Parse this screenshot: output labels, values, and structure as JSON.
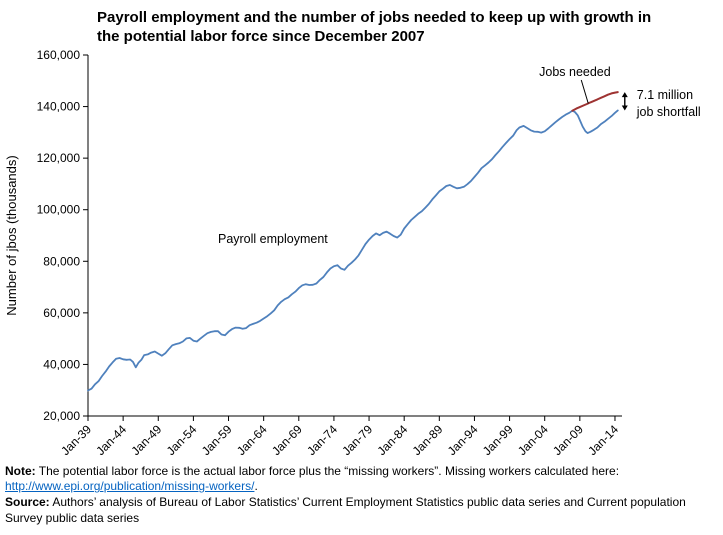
{
  "title": "Payroll employment and the number of jobs needed to keep up with growth in the potential labor force since December 2007",
  "colors": {
    "payroll_line": "#4F81BD",
    "jobs_needed_line": "#9E3332",
    "axis": "#000000",
    "link": "#0563C1"
  },
  "chart_data": {
    "type": "line",
    "title": "Payroll employment and the number of jobs needed to keep up with growth in the potential labor force since December 2007",
    "xlabel": "",
    "ylabel": "Number of jbos (thousands)",
    "xlim": [
      1939,
      2015
    ],
    "ylim": [
      20000,
      160000
    ],
    "grid": false,
    "legend_position": "inline-labels",
    "y_ticks": [
      20000,
      40000,
      60000,
      80000,
      100000,
      120000,
      140000,
      160000
    ],
    "x_tick_years": [
      1939,
      1944,
      1949,
      1954,
      1959,
      1964,
      1969,
      1974,
      1979,
      1984,
      1989,
      1994,
      1999,
      2004,
      2009,
      2014
    ],
    "x_tick_labels": [
      "Jan-39",
      "Jan-44",
      "Jan-49",
      "Jan-54",
      "Jan-59",
      "Jan-64",
      "Jan-69",
      "Jan-74",
      "Jan-79",
      "Jan-84",
      "Jan-89",
      "Jan-94",
      "Jan-99",
      "Jan-04",
      "Jan-09",
      "Jan-14"
    ],
    "series": [
      {
        "name": "Payroll employment",
        "color": "#4F81BD",
        "width": 1.8,
        "points": [
          [
            1939,
            29900
          ],
          [
            1939.5,
            30600
          ],
          [
            1940,
            32300
          ],
          [
            1940.5,
            33500
          ],
          [
            1941,
            35500
          ],
          [
            1941.5,
            37200
          ],
          [
            1942,
            39200
          ],
          [
            1942.5,
            40800
          ],
          [
            1943,
            42200
          ],
          [
            1943.5,
            42500
          ],
          [
            1944,
            42000
          ],
          [
            1944.5,
            41800
          ],
          [
            1945,
            41900
          ],
          [
            1945.4,
            41000
          ],
          [
            1945.8,
            38900
          ],
          [
            1946.2,
            40700
          ],
          [
            1946.6,
            41800
          ],
          [
            1947,
            43600
          ],
          [
            1947.5,
            43900
          ],
          [
            1948,
            44600
          ],
          [
            1948.5,
            45000
          ],
          [
            1949,
            44200
          ],
          [
            1949.5,
            43400
          ],
          [
            1950,
            44300
          ],
          [
            1950.5,
            45900
          ],
          [
            1951,
            47400
          ],
          [
            1951.5,
            47900
          ],
          [
            1952,
            48200
          ],
          [
            1952.5,
            48900
          ],
          [
            1953,
            50100
          ],
          [
            1953.5,
            50300
          ],
          [
            1954,
            49200
          ],
          [
            1954.5,
            48900
          ],
          [
            1955,
            50000
          ],
          [
            1955.5,
            51100
          ],
          [
            1956,
            52100
          ],
          [
            1956.5,
            52600
          ],
          [
            1957,
            52900
          ],
          [
            1957.5,
            52900
          ],
          [
            1958,
            51600
          ],
          [
            1958.5,
            51300
          ],
          [
            1959,
            52700
          ],
          [
            1959.5,
            53700
          ],
          [
            1960,
            54300
          ],
          [
            1960.5,
            54200
          ],
          [
            1961,
            53800
          ],
          [
            1961.5,
            54100
          ],
          [
            1962,
            55200
          ],
          [
            1962.5,
            55700
          ],
          [
            1963,
            56200
          ],
          [
            1963.5,
            56900
          ],
          [
            1964,
            57800
          ],
          [
            1964.5,
            58700
          ],
          [
            1965,
            59800
          ],
          [
            1965.5,
            61000
          ],
          [
            1966,
            62900
          ],
          [
            1966.5,
            64300
          ],
          [
            1967,
            65300
          ],
          [
            1967.5,
            66000
          ],
          [
            1968,
            67200
          ],
          [
            1968.5,
            68200
          ],
          [
            1969,
            69600
          ],
          [
            1969.5,
            70700
          ],
          [
            1970,
            71100
          ],
          [
            1970.5,
            70800
          ],
          [
            1971,
            70900
          ],
          [
            1971.5,
            71400
          ],
          [
            1972,
            72800
          ],
          [
            1972.5,
            73900
          ],
          [
            1973,
            75700
          ],
          [
            1973.5,
            77200
          ],
          [
            1974,
            78100
          ],
          [
            1974.5,
            78500
          ],
          [
            1975,
            77200
          ],
          [
            1975.5,
            76700
          ],
          [
            1976,
            78300
          ],
          [
            1976.5,
            79400
          ],
          [
            1977,
            80700
          ],
          [
            1977.5,
            82300
          ],
          [
            1978,
            84500
          ],
          [
            1978.5,
            86700
          ],
          [
            1979,
            88400
          ],
          [
            1979.5,
            89800
          ],
          [
            1980,
            90800
          ],
          [
            1980.5,
            90100
          ],
          [
            1981,
            91000
          ],
          [
            1981.5,
            91500
          ],
          [
            1982,
            90700
          ],
          [
            1982.5,
            89800
          ],
          [
            1983,
            89200
          ],
          [
            1983.5,
            90300
          ],
          [
            1984,
            92700
          ],
          [
            1984.5,
            94400
          ],
          [
            1985,
            96000
          ],
          [
            1985.5,
            97200
          ],
          [
            1986,
            98400
          ],
          [
            1986.5,
            99400
          ],
          [
            1987,
            100800
          ],
          [
            1987.5,
            102200
          ],
          [
            1988,
            104000
          ],
          [
            1988.5,
            105500
          ],
          [
            1989,
            107100
          ],
          [
            1989.5,
            108100
          ],
          [
            1990,
            109200
          ],
          [
            1990.5,
            109600
          ],
          [
            1991,
            108900
          ],
          [
            1991.5,
            108300
          ],
          [
            1992,
            108500
          ],
          [
            1992.5,
            108900
          ],
          [
            1993,
            109900
          ],
          [
            1993.5,
            111100
          ],
          [
            1994,
            112700
          ],
          [
            1994.5,
            114300
          ],
          [
            1995,
            116100
          ],
          [
            1995.5,
            117200
          ],
          [
            1996,
            118300
          ],
          [
            1996.5,
            119600
          ],
          [
            1997,
            121200
          ],
          [
            1997.5,
            122700
          ],
          [
            1998,
            124400
          ],
          [
            1998.5,
            125900
          ],
          [
            1999,
            127400
          ],
          [
            1999.5,
            128700
          ],
          [
            2000,
            130800
          ],
          [
            2000.4,
            131900
          ],
          [
            2001,
            132500
          ],
          [
            2001.5,
            131700
          ],
          [
            2002,
            130800
          ],
          [
            2002.5,
            130300
          ],
          [
            2003,
            130200
          ],
          [
            2003.5,
            129900
          ],
          [
            2004,
            130400
          ],
          [
            2004.5,
            131500
          ],
          [
            2005,
            132700
          ],
          [
            2005.5,
            133900
          ],
          [
            2006,
            135000
          ],
          [
            2006.5,
            136000
          ],
          [
            2007,
            136900
          ],
          [
            2007.5,
            137600
          ],
          [
            2007.92,
            138400
          ],
          [
            2008.3,
            137900
          ],
          [
            2008.7,
            136600
          ],
          [
            2009,
            134800
          ],
          [
            2009.4,
            132200
          ],
          [
            2009.8,
            130400
          ],
          [
            2010.1,
            129700
          ],
          [
            2010.5,
            130200
          ],
          [
            2011,
            131000
          ],
          [
            2011.5,
            131900
          ],
          [
            2012,
            133200
          ],
          [
            2012.5,
            134100
          ],
          [
            2013,
            135200
          ],
          [
            2013.5,
            136300
          ],
          [
            2014,
            137600
          ],
          [
            2014.4,
            138500
          ]
        ]
      },
      {
        "name": "Jobs needed",
        "color": "#9E3332",
        "width": 2,
        "points": [
          [
            2007.92,
            138400
          ],
          [
            2008.5,
            139200
          ],
          [
            2009,
            139800
          ],
          [
            2009.5,
            140400
          ],
          [
            2010,
            141000
          ],
          [
            2010.5,
            141600
          ],
          [
            2011,
            142200
          ],
          [
            2011.5,
            142800
          ],
          [
            2012,
            143400
          ],
          [
            2012.5,
            144000
          ],
          [
            2013,
            144600
          ],
          [
            2013.5,
            145100
          ],
          [
            2014,
            145400
          ],
          [
            2014.4,
            145600
          ]
        ]
      }
    ],
    "annotations": {
      "payroll_label": "Payroll employment",
      "jobs_needed_label": "Jobs needed",
      "shortfall_line1": "7.1 million",
      "shortfall_line2": "job shortfall",
      "shortfall_value_thousands": 7100
    }
  },
  "notes": {
    "note_label": "Note:",
    "note_text": "  The potential labor force is the actual labor force plus the “missing workers”.  Missing workers calculated here:  ",
    "note_link": "http://www.epi.org/publication/missing-workers/",
    "note_after_link": ".",
    "source_label": "Source:",
    "source_text": "  Authors’ analysis of Bureau of Labor Statistics’ Current Employment Statistics public data series and Current population Survey public data series"
  }
}
